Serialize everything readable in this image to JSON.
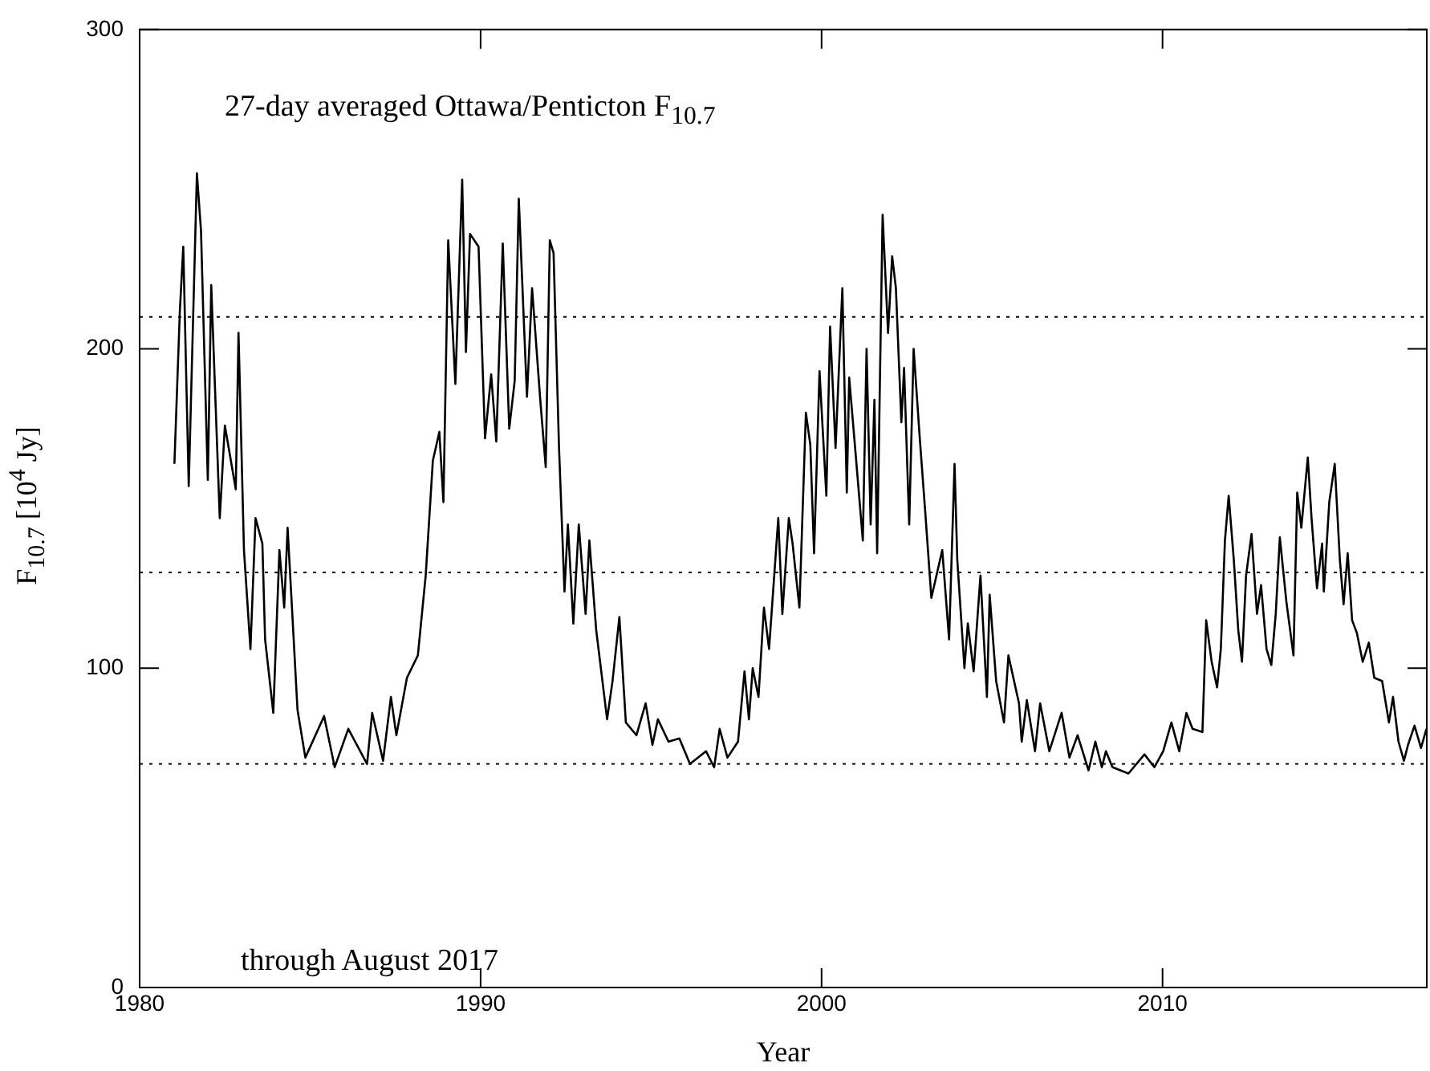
{
  "chart_data": {
    "type": "line",
    "title": "27-day averaged Ottawa/Penticton  F$_{10.7}$",
    "xlabel": "Year",
    "ylabel": "F$_{10.7}$  [10$^{4}$ Jy]",
    "annotations": [
      "through August 2017"
    ],
    "xlim": [
      1980,
      2017.75
    ],
    "xticks": [
      1980,
      1990,
      2000,
      2010
    ],
    "ylim": [
      0,
      300
    ],
    "yticks": [
      0,
      100,
      200,
      300
    ],
    "grid": false,
    "legend": false,
    "marker": "none",
    "line_style": "solid",
    "ref_lines": [
      {
        "axis": "y",
        "value": 210,
        "color": "#000000",
        "line_style": "dotted"
      },
      {
        "axis": "y",
        "value": 130,
        "color": "#000000",
        "line_style": "dotted"
      },
      {
        "axis": "y",
        "value": 70,
        "color": "#000000",
        "line_style": "dotted"
      }
    ],
    "series": [
      {
        "color": "#000000",
        "x": [
          1981.02,
          1981.18,
          1981.28,
          1981.44,
          1981.68,
          1981.8,
          1982.0,
          1982.1,
          1982.35,
          1982.5,
          1982.82,
          1982.9,
          1983.06,
          1983.25,
          1983.4,
          1983.6,
          1983.68,
          1983.92,
          1984.1,
          1984.24,
          1984.34,
          1984.63,
          1984.86,
          1985.41,
          1985.72,
          1986.12,
          1986.67,
          1986.82,
          1987.14,
          1987.37,
          1987.53,
          1987.84,
          1988.16,
          1988.39,
          1988.6,
          1988.79,
          1988.91,
          1989.05,
          1989.26,
          1989.46,
          1989.57,
          1989.69,
          1989.94,
          1990.13,
          1990.31,
          1990.46,
          1990.65,
          1990.84,
          1991.0,
          1991.12,
          1991.36,
          1991.51,
          1991.75,
          1991.91,
          1992.03,
          1992.14,
          1992.3,
          1992.46,
          1992.56,
          1992.72,
          1992.88,
          1993.08,
          1993.19,
          1993.39,
          1993.71,
          1993.87,
          1994.07,
          1994.26,
          1994.57,
          1994.84,
          1995.04,
          1995.2,
          1995.51,
          1995.83,
          1996.14,
          1996.61,
          1996.85,
          1997.01,
          1997.24,
          1997.55,
          1997.74,
          1997.87,
          1997.98,
          1998.15,
          1998.31,
          1998.46,
          1998.73,
          1998.85,
          1999.04,
          1999.15,
          1999.35,
          1999.54,
          1999.67,
          1999.78,
          1999.94,
          2000.14,
          2000.25,
          2000.41,
          2000.61,
          2000.74,
          2000.81,
          2001.0,
          2001.21,
          2001.32,
          2001.44,
          2001.55,
          2001.63,
          2001.79,
          2001.95,
          2002.07,
          2002.18,
          2002.34,
          2002.42,
          2002.57,
          2002.7,
          2002.88,
          2003.04,
          2003.22,
          2003.54,
          2003.74,
          2003.9,
          2003.98,
          2004.19,
          2004.29,
          2004.46,
          2004.66,
          2004.85,
          2004.93,
          2005.12,
          2005.35,
          2005.48,
          2005.79,
          2005.87,
          2006.02,
          2006.26,
          2006.41,
          2006.68,
          2007.04,
          2007.27,
          2007.51,
          2007.83,
          2008.03,
          2008.22,
          2008.34,
          2008.53,
          2009.0,
          2009.47,
          2009.76,
          2010.02,
          2010.26,
          2010.49,
          2010.7,
          2010.88,
          2011.17,
          2011.28,
          2011.44,
          2011.6,
          2011.71,
          2011.83,
          2011.94,
          2012.09,
          2012.22,
          2012.33,
          2012.45,
          2012.61,
          2012.77,
          2012.89,
          2013.05,
          2013.19,
          2013.32,
          2013.44,
          2013.63,
          2013.84,
          2013.95,
          2014.07,
          2014.26,
          2014.37,
          2014.53,
          2014.68,
          2014.73,
          2014.89,
          2015.05,
          2015.2,
          2015.31,
          2015.43,
          2015.56,
          2015.7,
          2015.87,
          2016.05,
          2016.21,
          2016.44,
          2016.64,
          2016.76,
          2016.92,
          2017.08,
          2017.2,
          2017.39,
          2017.58,
          2017.74
        ],
        "values": [
          164,
          212,
          232,
          157,
          255,
          237,
          159,
          220,
          147,
          176,
          156,
          205,
          137,
          106,
          147,
          139,
          109,
          86,
          137,
          119,
          144,
          87,
          72,
          85,
          69,
          81,
          70,
          86,
          71,
          91,
          79,
          97,
          104,
          129,
          165,
          174,
          152,
          234,
          189,
          253,
          199,
          236,
          232,
          172,
          192,
          171,
          233,
          175,
          190,
          247,
          185,
          219,
          184,
          163,
          234,
          230,
          169,
          124,
          145,
          114,
          145,
          117,
          140,
          112,
          84,
          96,
          116,
          83,
          79,
          89,
          76,
          84,
          77,
          78,
          70,
          74,
          69,
          81,
          72,
          77,
          99,
          84,
          100,
          91,
          119,
          106,
          147,
          117,
          147,
          139,
          119,
          180,
          170,
          136,
          193,
          154,
          207,
          169,
          219,
          155,
          191,
          167,
          140,
          200,
          145,
          184,
          136,
          242,
          205,
          229,
          219,
          177,
          194,
          145,
          200,
          172,
          149,
          122,
          137,
          109,
          164,
          134,
          100,
          114,
          99,
          129,
          91,
          123,
          96,
          83,
          104,
          89,
          77,
          90,
          74,
          89,
          74,
          86,
          72,
          79,
          68,
          77,
          69,
          74,
          69,
          67,
          73,
          69,
          74,
          83,
          74,
          86,
          81,
          80,
          115,
          102,
          94,
          106,
          140,
          154,
          134,
          112,
          102,
          129,
          142,
          117,
          126,
          106,
          101,
          117,
          141,
          121,
          104,
          155,
          144,
          166,
          147,
          125,
          139,
          124,
          152,
          164,
          134,
          120,
          136,
          115,
          111,
          102,
          108,
          97,
          96,
          83,
          91,
          77,
          71,
          76,
          82,
          75,
          81
        ]
      }
    ]
  }
}
